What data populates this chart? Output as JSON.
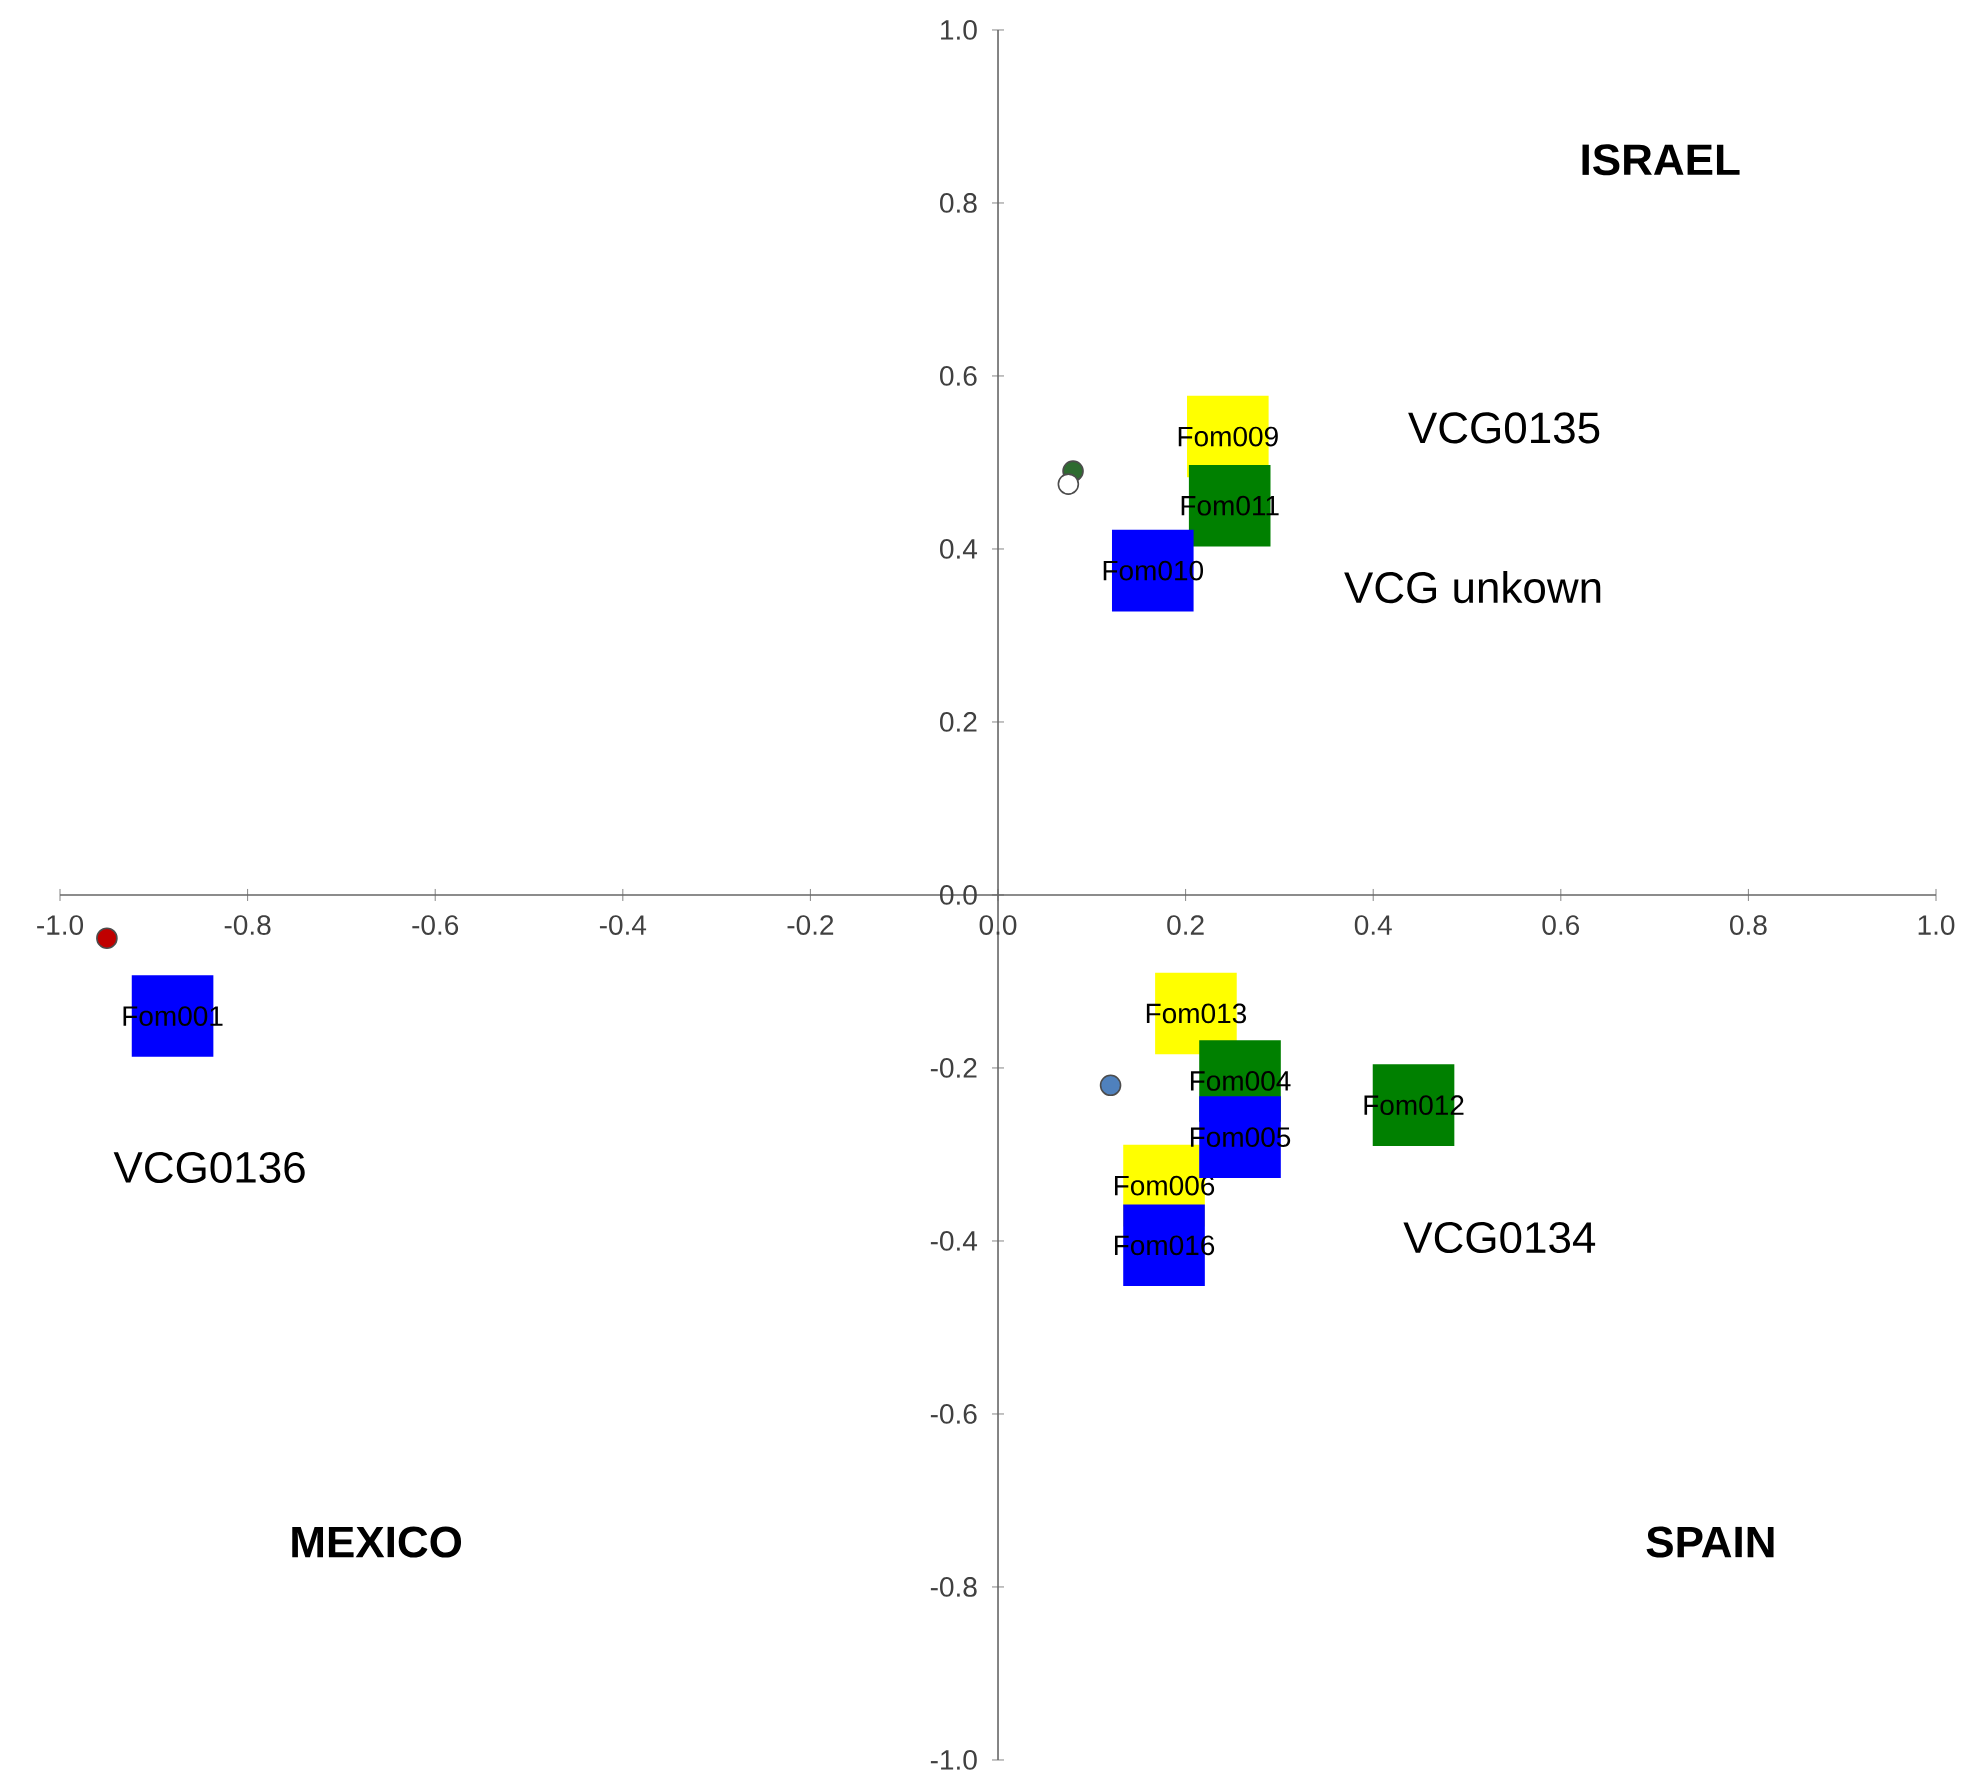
{
  "chart_data": {
    "type": "scatter",
    "xlim": [
      -1.0,
      1.0
    ],
    "ylim": [
      -1.0,
      1.0
    ],
    "xticks": [
      {
        "value": -1.0,
        "label": "-1.0"
      },
      {
        "value": -0.8,
        "label": "-0.8"
      },
      {
        "value": -0.6,
        "label": "-0.6"
      },
      {
        "value": -0.4,
        "label": "-0.4"
      },
      {
        "value": -0.2,
        "label": "-0.2"
      },
      {
        "value": 0.0,
        "label": "0.0"
      },
      {
        "value": 0.2,
        "label": "0.2"
      },
      {
        "value": 0.4,
        "label": "0.4"
      },
      {
        "value": 0.6,
        "label": "0.6"
      },
      {
        "value": 0.8,
        "label": "0.8"
      },
      {
        "value": 1.0,
        "label": "1.0"
      }
    ],
    "yticks": [
      {
        "value": -1.0,
        "label": "-1.0"
      },
      {
        "value": -0.8,
        "label": "-0.8"
      },
      {
        "value": -0.6,
        "label": "-0.6"
      },
      {
        "value": -0.4,
        "label": "-0.4"
      },
      {
        "value": -0.2,
        "label": "-0.2"
      },
      {
        "value": 0.0,
        "label": "0.0"
      },
      {
        "value": 0.2,
        "label": "0.2"
      },
      {
        "value": 0.4,
        "label": "0.4"
      },
      {
        "value": 0.6,
        "label": "0.6"
      },
      {
        "value": 0.8,
        "label": "0.8"
      },
      {
        "value": 1.0,
        "label": "1.0"
      }
    ],
    "series": [
      {
        "marker": "circle",
        "x": [
          -0.95,
          0.12,
          0.08,
          0.075
        ],
        "values": [
          -0.05,
          -0.22,
          0.49,
          0.475
        ],
        "colors": [
          "#c00000",
          "#4f81bd",
          "#2e6b30",
          "#ffffff"
        ]
      },
      {
        "marker": "square",
        "x": [
          0.245,
          0.211,
          0.177
        ],
        "values": [
          0.53,
          -0.137,
          -0.336
        ],
        "color": "#ffff00",
        "value_labels": [
          "Fom009",
          "Fom013",
          "Fom006"
        ]
      },
      {
        "marker": "square",
        "x": [
          0.247,
          0.258,
          0.443
        ],
        "values": [
          0.45,
          -0.215,
          -0.243
        ],
        "color": "#008000",
        "value_labels": [
          "Fom011",
          "Fom004",
          "Fom012"
        ]
      },
      {
        "marker": "square",
        "x": [
          0.165,
          -0.88,
          0.258,
          0.177
        ],
        "values": [
          0.375,
          -0.14,
          -0.28,
          -0.405
        ],
        "color": "#0000ff",
        "value_labels": [
          "Fom010",
          "Fom001",
          "Fom005",
          "Fom016"
        ]
      }
    ],
    "annotations": [
      "VCG0135",
      "VCG unkown",
      "VCG0136",
      "VCG0134",
      "**ISRAEL**",
      "**MEXICO**",
      "**SPAIN**"
    ]
  }
}
